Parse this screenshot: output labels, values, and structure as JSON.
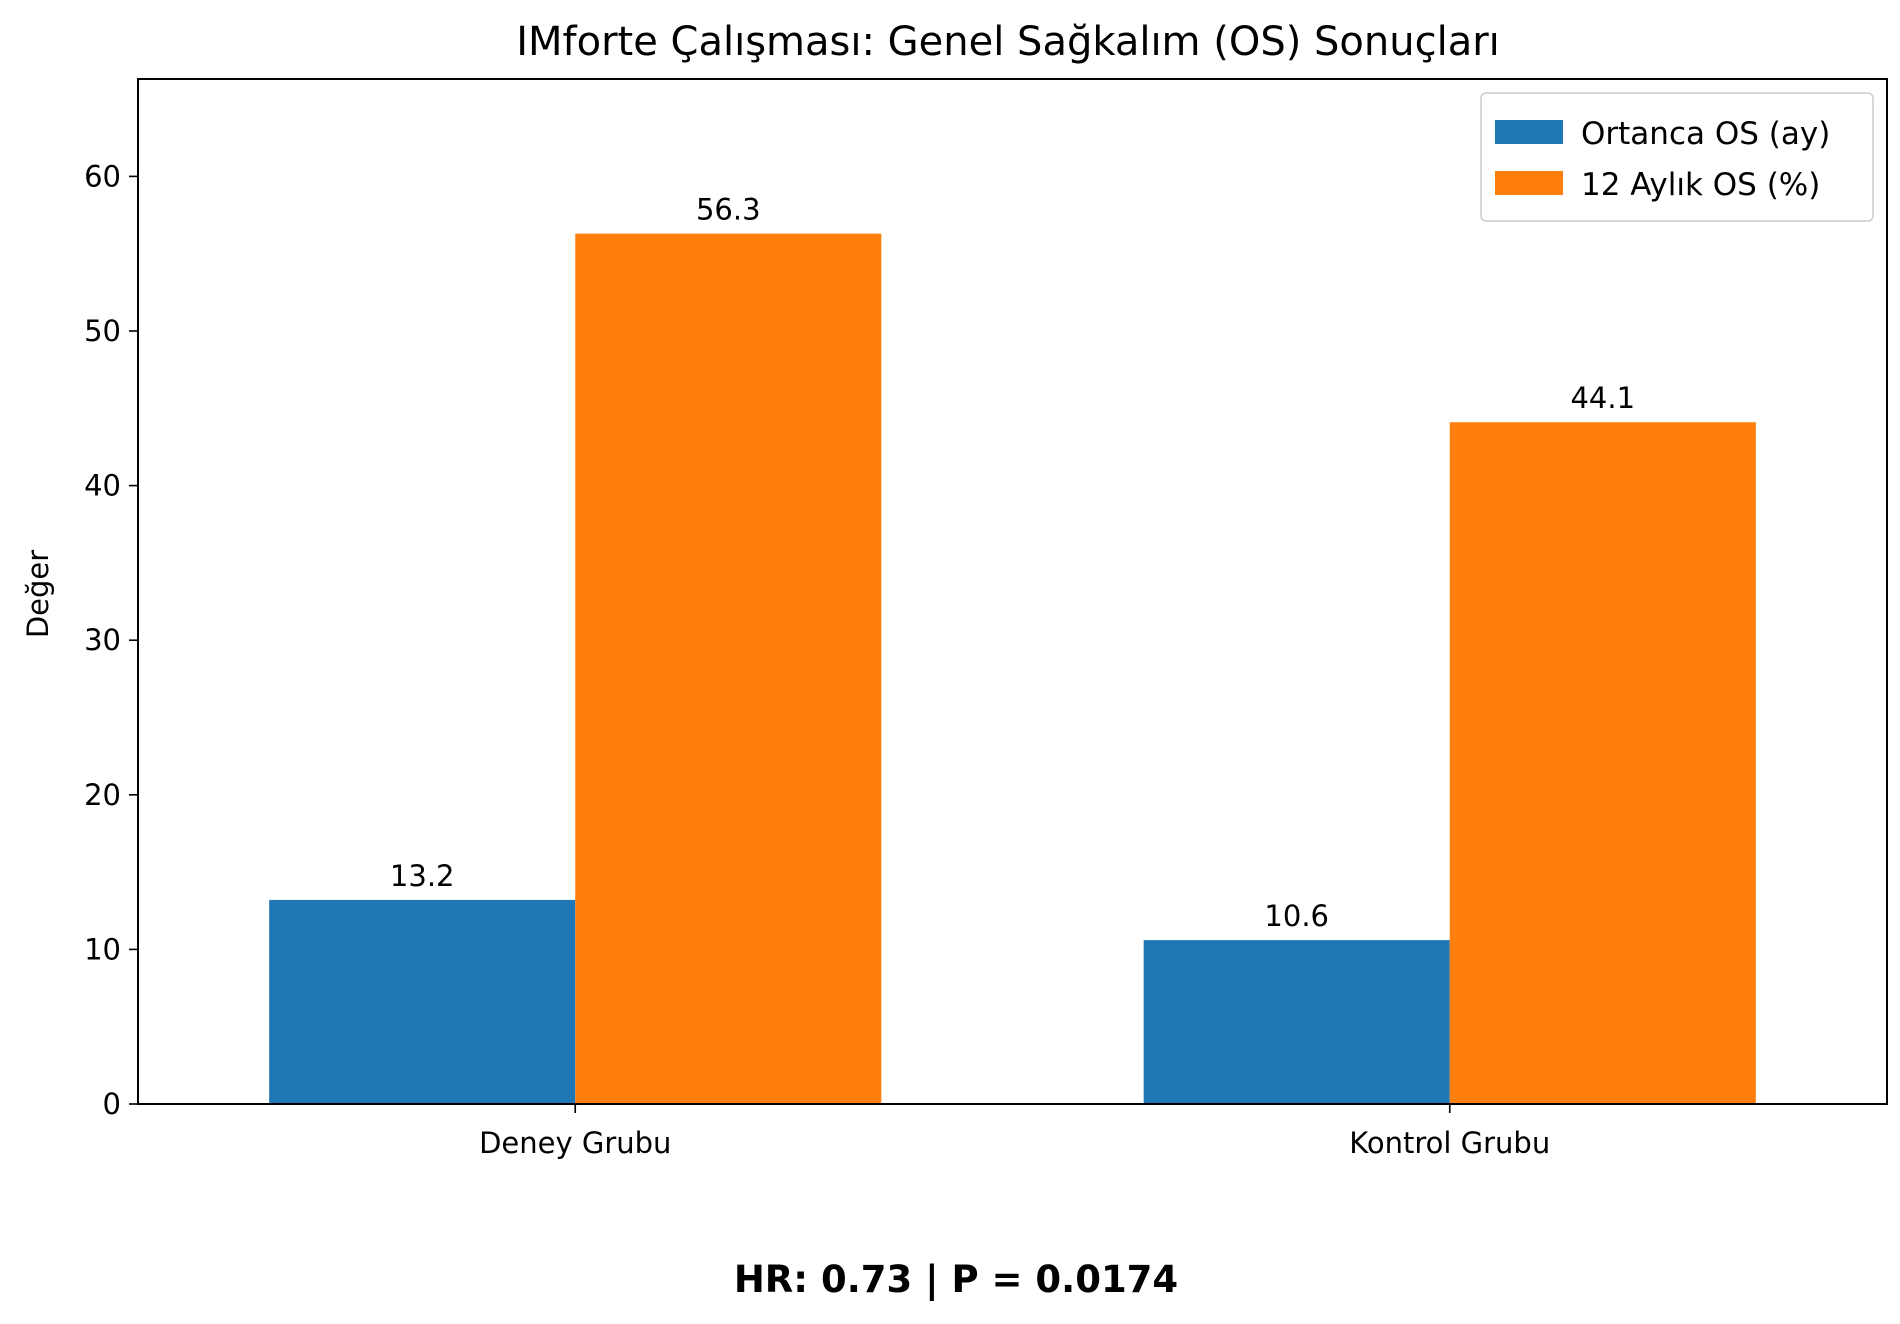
{
  "chart_data": {
    "type": "bar",
    "title": "IMforte Çalışması: Genel Sağkalım (OS) Sonuçları",
    "xlabel": "",
    "ylabel": "Değer",
    "categories": [
      "Deney Grubu",
      "Kontrol Grubu"
    ],
    "series": [
      {
        "name": "Ortanca OS (ay)",
        "values": [
          13.2,
          10.6
        ],
        "color": "#1f77b4"
      },
      {
        "name": "12 Aylık OS (%)",
        "values": [
          56.3,
          44.1
        ],
        "color": "#ff7f0e"
      }
    ],
    "data_labels": [
      [
        "13.2",
        "10.6"
      ],
      [
        "56.3",
        "44.1"
      ]
    ],
    "yticks": [
      0,
      10,
      20,
      30,
      40,
      50,
      60
    ],
    "ylim": [
      0,
      66.3
    ],
    "grid": false,
    "legend_position": "top-right",
    "footnote": "HR: 0.73 | P = 0.0174"
  }
}
